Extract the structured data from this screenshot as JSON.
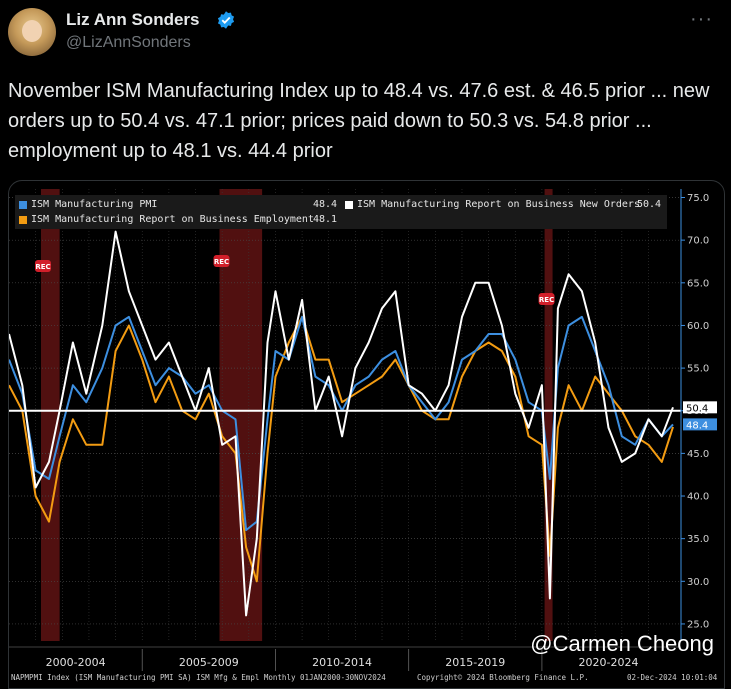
{
  "tweet": {
    "author_name": "Liz Ann Sonders",
    "handle": "@LizAnnSonders",
    "more_label": "···",
    "text": "November ISM Manufacturing Index up to 48.4 vs. 47.6 est. & 46.5 prior ... new orders up to 50.4 vs. 47.1 prior; prices paid down to 50.3 vs. 54.8 prior ... employment up to 48.1 vs. 44.4 prior"
  },
  "chart_data": {
    "type": "line",
    "title": "",
    "xlabel": "",
    "ylabel": "",
    "ylim": [
      23,
      76
    ],
    "xlim": [
      2000.0,
      2024.92
    ],
    "y_ticks": [
      "75.0",
      "70.0",
      "65.0",
      "60.0",
      "55.0",
      "50.0",
      "45.0",
      "40.0",
      "35.0",
      "30.0",
      "25.0"
    ],
    "x_tick_labels": [
      "2000-2004",
      "2005-2009",
      "2010-2014",
      "2015-2019",
      "2020-2024"
    ],
    "grid": true,
    "legend_position": "top-left",
    "reference_line": 50,
    "recession_markers": [
      {
        "label": "REC",
        "start": 2001.2,
        "end": 2001.9
      },
      {
        "label": "REC",
        "start": 2007.9,
        "end": 2009.5
      },
      {
        "label": "REC",
        "start": 2020.1,
        "end": 2020.4
      }
    ],
    "series": [
      {
        "name": "ISM Manufacturing PMI",
        "legend_value": "48.4",
        "last_value_label": "48.4",
        "color": "#3d8fe0",
        "x": [
          2000.0,
          2000.5,
          2001.0,
          2001.5,
          2001.9,
          2002.4,
          2002.9,
          2003.5,
          2004.0,
          2004.5,
          2005.0,
          2005.5,
          2006.0,
          2006.5,
          2007.0,
          2007.5,
          2008.0,
          2008.5,
          2008.9,
          2009.3,
          2009.7,
          2010.0,
          2010.5,
          2011.0,
          2011.5,
          2012.0,
          2012.5,
          2013.0,
          2013.5,
          2014.0,
          2014.5,
          2015.0,
          2015.5,
          2016.0,
          2016.5,
          2017.0,
          2017.5,
          2018.0,
          2018.5,
          2019.0,
          2019.5,
          2020.0,
          2020.3,
          2020.6,
          2021.0,
          2021.5,
          2022.0,
          2022.5,
          2023.0,
          2023.5,
          2024.0,
          2024.5,
          2024.92
        ],
        "values": [
          56,
          52,
          43,
          42,
          47,
          53,
          51,
          55,
          60,
          61,
          57,
          53,
          55,
          54,
          52,
          53,
          50,
          49,
          36,
          37,
          49,
          57,
          56,
          61,
          54,
          53,
          50,
          53,
          54,
          56,
          57,
          53,
          51,
          49,
          51,
          56,
          57,
          59,
          59,
          56,
          51,
          50,
          42,
          55,
          60,
          61,
          57,
          53,
          47,
          46,
          49,
          47,
          48.4
        ]
      },
      {
        "name": "ISM Manufacturing Report on Business New Orders",
        "legend_value": "50.4",
        "last_value_label": "50.4",
        "color": "#ffffff",
        "x": [
          2000.0,
          2000.5,
          2001.0,
          2001.5,
          2001.9,
          2002.4,
          2002.9,
          2003.5,
          2004.0,
          2004.5,
          2005.0,
          2005.5,
          2006.0,
          2006.5,
          2007.0,
          2007.5,
          2008.0,
          2008.5,
          2008.9,
          2009.3,
          2009.7,
          2010.0,
          2010.5,
          2011.0,
          2011.5,
          2012.0,
          2012.5,
          2013.0,
          2013.5,
          2014.0,
          2014.5,
          2015.0,
          2015.5,
          2016.0,
          2016.5,
          2017.0,
          2017.5,
          2018.0,
          2018.5,
          2019.0,
          2019.5,
          2020.0,
          2020.3,
          2020.6,
          2021.0,
          2021.5,
          2022.0,
          2022.5,
          2023.0,
          2023.5,
          2024.0,
          2024.5,
          2024.92
        ],
        "values": [
          59,
          53,
          41,
          44,
          50,
          58,
          52,
          60,
          71,
          64,
          60,
          56,
          58,
          54,
          50,
          55,
          46,
          47,
          26,
          35,
          58,
          64,
          56,
          63,
          50,
          54,
          47,
          55,
          58,
          62,
          64,
          53,
          52,
          50,
          53,
          61,
          65,
          65,
          60,
          52,
          48,
          53,
          28,
          62,
          66,
          64,
          58,
          48,
          44,
          45,
          49,
          47,
          50.4
        ]
      },
      {
        "name": "ISM Manufacturing Report on Business Employment",
        "legend_value": "48.1",
        "last_value_label": "",
        "color": "#f39c12",
        "x": [
          2000.0,
          2000.5,
          2001.0,
          2001.5,
          2001.9,
          2002.4,
          2002.9,
          2003.5,
          2004.0,
          2004.5,
          2005.0,
          2005.5,
          2006.0,
          2006.5,
          2007.0,
          2007.5,
          2008.0,
          2008.5,
          2008.9,
          2009.3,
          2009.7,
          2010.0,
          2010.5,
          2011.0,
          2011.5,
          2012.0,
          2012.5,
          2013.0,
          2013.5,
          2014.0,
          2014.5,
          2015.0,
          2015.5,
          2016.0,
          2016.5,
          2017.0,
          2017.5,
          2018.0,
          2018.5,
          2019.0,
          2019.5,
          2020.0,
          2020.3,
          2020.6,
          2021.0,
          2021.5,
          2022.0,
          2022.5,
          2023.0,
          2023.5,
          2024.0,
          2024.5,
          2024.92
        ],
        "values": [
          53,
          50,
          40,
          37,
          44,
          49,
          46,
          46,
          57,
          60,
          56,
          51,
          54,
          50,
          49,
          52,
          47,
          45,
          34,
          30,
          45,
          54,
          58,
          61,
          56,
          56,
          51,
          52,
          53,
          54,
          56,
          53,
          50,
          49,
          49,
          54,
          57,
          58,
          57,
          54,
          47,
          46,
          33,
          48,
          53,
          50,
          54,
          52,
          50,
          47,
          46,
          44,
          48.1
        ]
      }
    ],
    "watermark": "@Carmen Cheong",
    "footer_left": "NAPMPMI Index (ISM Manufacturing PMI SA) ISM Mfg & Empl  Monthly 01JAN2000-30NOV2024",
    "footer_mid": "Copyright© 2024 Bloomberg Finance L.P.",
    "footer_right": "02-Dec-2024 10:01:04"
  }
}
